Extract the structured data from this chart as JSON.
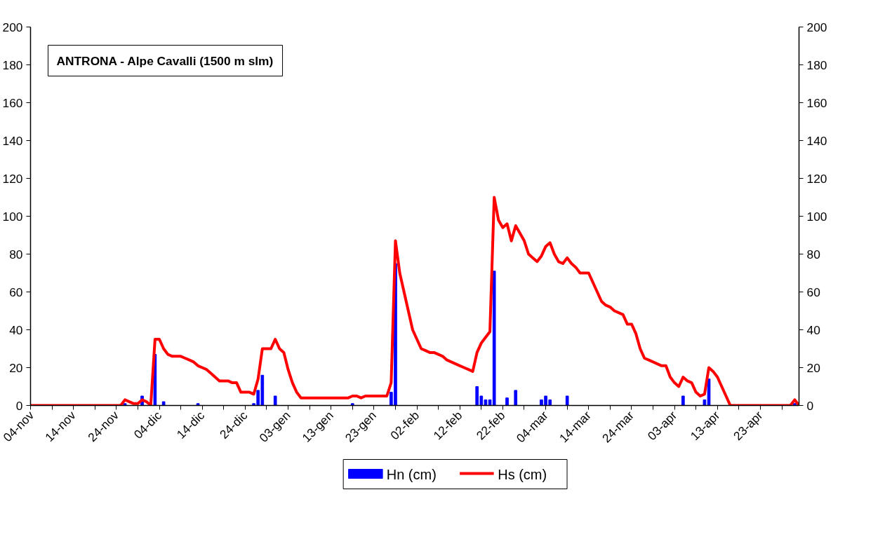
{
  "chart_data": {
    "type": "line",
    "title": "ANTRONA - Alpe Cavalli (1500 m slm)",
    "categories": [
      "04-nov",
      null,
      null,
      null,
      null,
      null,
      null,
      null,
      null,
      null,
      "14-nov",
      null,
      null,
      null,
      null,
      null,
      null,
      null,
      null,
      null,
      "24-nov",
      null,
      null,
      null,
      null,
      null,
      null,
      null,
      null,
      null,
      "04-dic",
      null,
      null,
      null,
      null,
      null,
      null,
      null,
      null,
      null,
      "14-dic",
      null,
      null,
      null,
      null,
      null,
      null,
      null,
      null,
      null,
      "24-dic",
      null,
      null,
      null,
      null,
      null,
      null,
      null,
      null,
      null,
      "03-gen",
      null,
      null,
      null,
      null,
      null,
      null,
      null,
      null,
      null,
      "13-gen",
      null,
      null,
      null,
      null,
      null,
      null,
      null,
      null,
      null,
      "23-gen",
      null,
      null,
      null,
      null,
      null,
      null,
      null,
      null,
      null,
      "02-feb",
      null,
      null,
      null,
      null,
      null,
      null,
      null,
      null,
      null,
      "12-feb",
      null,
      null,
      null,
      null,
      null,
      null,
      null,
      null,
      null,
      "22-feb",
      null,
      null,
      null,
      null,
      null,
      null,
      null,
      null,
      null,
      "04-mar",
      null,
      null,
      null,
      null,
      null,
      null,
      null,
      null,
      null,
      "14-mar",
      null,
      null,
      null,
      null,
      null,
      null,
      null,
      null,
      null,
      "24-mar",
      null,
      null,
      null,
      null,
      null,
      null,
      null,
      null,
      null,
      "03-apr",
      null,
      null,
      null,
      null,
      null,
      null,
      null,
      null,
      null,
      "13-apr",
      null,
      null,
      null,
      null,
      null,
      null,
      null,
      null,
      null,
      "23-apr",
      null,
      null,
      null,
      null,
      null,
      null,
      null,
      null,
      null
    ],
    "series": [
      {
        "name": "Hn (cm)",
        "type": "bar",
        "color": "#0000ff",
        "values": [
          null,
          null,
          null,
          null,
          null,
          null,
          null,
          null,
          null,
          null,
          null,
          null,
          null,
          null,
          null,
          null,
          null,
          null,
          null,
          null,
          null,
          null,
          1,
          null,
          null,
          null,
          5,
          null,
          null,
          27,
          null,
          2,
          null,
          null,
          null,
          null,
          null,
          null,
          null,
          1,
          null,
          null,
          null,
          null,
          null,
          null,
          null,
          null,
          null,
          null,
          null,
          null,
          1,
          8,
          16,
          null,
          null,
          5,
          null,
          null,
          null,
          null,
          null,
          null,
          null,
          null,
          null,
          null,
          null,
          null,
          null,
          null,
          null,
          null,
          null,
          1,
          null,
          null,
          null,
          null,
          null,
          null,
          null,
          null,
          7,
          75,
          null,
          null,
          null,
          null,
          null,
          null,
          null,
          null,
          null,
          null,
          null,
          null,
          null,
          null,
          null,
          null,
          null,
          null,
          10,
          5,
          3,
          3,
          71,
          null,
          null,
          4,
          null,
          8,
          null,
          null,
          null,
          null,
          null,
          3,
          5,
          3,
          null,
          null,
          null,
          5,
          null,
          null,
          null,
          null,
          null,
          null,
          null,
          null,
          null,
          null,
          null,
          null,
          null,
          null,
          null,
          null,
          null,
          null,
          null,
          null,
          null,
          null,
          null,
          null,
          null,
          null,
          5,
          null,
          null,
          null,
          null,
          3,
          14,
          null,
          null,
          null,
          null,
          null,
          null,
          null,
          null,
          null,
          null,
          null,
          null,
          null,
          null,
          null,
          null,
          null,
          null,
          null,
          1,
          null
        ]
      },
      {
        "name": "Hs (cm)",
        "color": "#ff0000",
        "values": [
          0,
          0,
          0,
          0,
          0,
          0,
          0,
          0,
          0,
          0,
          0,
          0,
          0,
          0,
          0,
          0,
          0,
          0,
          0,
          0,
          0,
          0,
          3,
          2,
          1,
          1,
          3,
          2,
          0,
          35,
          35,
          30,
          27,
          26,
          26,
          26,
          25,
          24,
          23,
          21,
          20,
          19,
          17,
          15,
          13,
          13,
          13,
          12,
          12,
          7,
          7,
          7,
          6,
          14,
          30,
          30,
          30,
          35,
          30,
          28,
          19,
          12,
          7,
          4,
          4,
          4,
          4,
          4,
          4,
          4,
          4,
          4,
          4,
          4,
          4,
          5,
          5,
          4,
          5,
          5,
          5,
          5,
          5,
          5,
          12,
          87,
          70,
          60,
          50,
          40,
          35,
          30,
          29,
          28,
          28,
          27,
          26,
          24,
          23,
          22,
          21,
          20,
          19,
          18,
          28,
          33,
          36,
          39,
          110,
          98,
          94,
          96,
          87,
          95,
          91,
          87,
          80,
          78,
          76,
          79,
          84,
          86,
          80,
          76,
          75,
          78,
          75,
          73,
          70,
          70,
          70,
          65,
          60,
          55,
          53,
          52,
          50,
          49,
          48,
          43,
          43,
          38,
          30,
          25,
          24,
          23,
          22,
          21,
          21,
          15,
          12,
          10,
          15,
          13,
          12,
          7,
          5,
          6,
          20,
          18,
          15,
          10,
          5,
          0,
          0,
          0,
          0,
          0,
          0,
          0,
          0,
          0,
          0,
          0,
          0,
          0,
          0,
          0,
          3,
          0
        ]
      }
    ],
    "ylim": [
      0,
      200
    ],
    "yticks": [
      0,
      20,
      40,
      60,
      80,
      100,
      120,
      140,
      160,
      180,
      200
    ],
    "y2lim": [
      0,
      200
    ],
    "y2ticks": [
      0,
      20,
      40,
      60,
      80,
      100,
      120,
      140,
      160,
      180,
      200
    ],
    "legend": "bottom"
  }
}
